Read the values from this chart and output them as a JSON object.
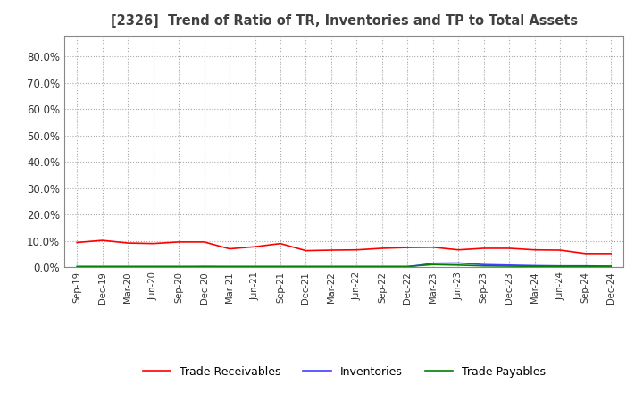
{
  "title": "[2326]  Trend of Ratio of TR, Inventories and TP to Total Assets",
  "x_labels": [
    "Sep-19",
    "Dec-19",
    "Mar-20",
    "Jun-20",
    "Sep-20",
    "Dec-20",
    "Mar-21",
    "Jun-21",
    "Sep-21",
    "Dec-21",
    "Mar-22",
    "Jun-22",
    "Sep-22",
    "Dec-22",
    "Mar-23",
    "Jun-23",
    "Sep-23",
    "Dec-23",
    "Mar-24",
    "Jun-24",
    "Sep-24",
    "Dec-24"
  ],
  "trade_receivables": [
    0.094,
    0.102,
    0.092,
    0.09,
    0.096,
    0.096,
    0.07,
    0.078,
    0.09,
    0.063,
    0.065,
    0.066,
    0.072,
    0.075,
    0.076,
    0.066,
    0.072,
    0.072,
    0.066,
    0.065,
    0.052,
    0.052
  ],
  "inventories": [
    0.0,
    0.0,
    0.0,
    0.0,
    0.0,
    0.002,
    0.001,
    0.001,
    0.001,
    0.001,
    0.001,
    0.001,
    0.001,
    0.001,
    0.015,
    0.016,
    0.01,
    0.008,
    0.006,
    0.005,
    0.005,
    0.004
  ],
  "trade_payables": [
    0.003,
    0.003,
    0.003,
    0.003,
    0.003,
    0.003,
    0.003,
    0.003,
    0.003,
    0.003,
    0.003,
    0.003,
    0.003,
    0.003,
    0.01,
    0.008,
    0.005,
    0.004,
    0.003,
    0.003,
    0.003,
    0.003
  ],
  "tr_color": "#FF0000",
  "inv_color": "#4040FF",
  "tp_color": "#008000",
  "background_color": "#FFFFFF",
  "plot_bg_color": "#FFFFFF",
  "grid_color": "#AAAAAA",
  "ylim": [
    0.0,
    0.88
  ],
  "yticks": [
    0.0,
    0.1,
    0.2,
    0.3,
    0.4,
    0.5,
    0.6,
    0.7,
    0.8
  ],
  "title_color": "#404040",
  "legend_labels": [
    "Trade Receivables",
    "Inventories",
    "Trade Payables"
  ]
}
